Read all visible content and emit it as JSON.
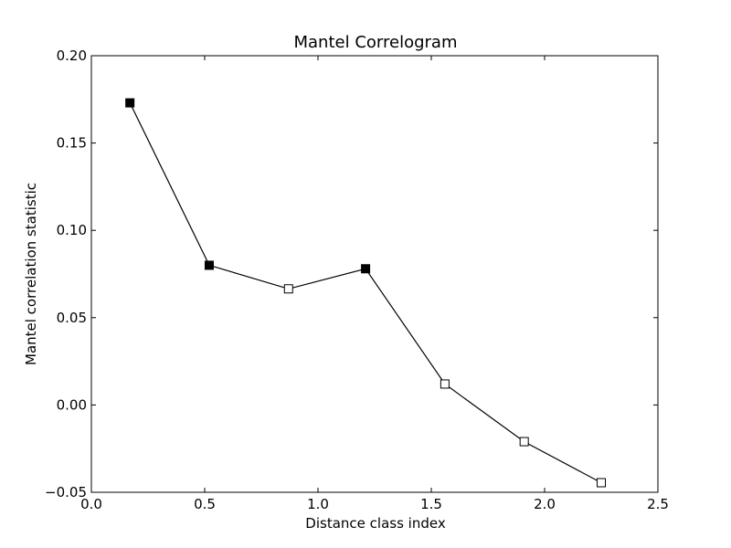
{
  "chart_data": {
    "type": "line",
    "title": "Mantel Correlogram",
    "xlabel": "Distance class index",
    "ylabel": "Mantel correlation statistic",
    "xlim": [
      0.0,
      2.5
    ],
    "ylim": [
      -0.05,
      0.2
    ],
    "xticks": [
      0.0,
      0.5,
      1.0,
      1.5,
      2.0,
      2.5
    ],
    "xtick_labels": [
      "0.0",
      "0.5",
      "1.0",
      "1.5",
      "2.0",
      "2.5"
    ],
    "yticks": [
      -0.05,
      0.0,
      0.05,
      0.1,
      0.15,
      0.2
    ],
    "ytick_labels": [
      "−0.05",
      "0.00",
      "0.05",
      "0.10",
      "0.15",
      "0.20"
    ],
    "grid": false,
    "series": [
      {
        "line_color": "#000000",
        "marker": "square",
        "points": [
          {
            "x": 0.17,
            "y": 0.173,
            "filled": true
          },
          {
            "x": 0.52,
            "y": 0.08,
            "filled": true
          },
          {
            "x": 0.87,
            "y": 0.0665,
            "filled": false
          },
          {
            "x": 1.21,
            "y": 0.078,
            "filled": true
          },
          {
            "x": 1.56,
            "y": 0.012,
            "filled": false
          },
          {
            "x": 1.91,
            "y": -0.021,
            "filled": false
          },
          {
            "x": 2.25,
            "y": -0.0445,
            "filled": false
          }
        ]
      }
    ]
  }
}
